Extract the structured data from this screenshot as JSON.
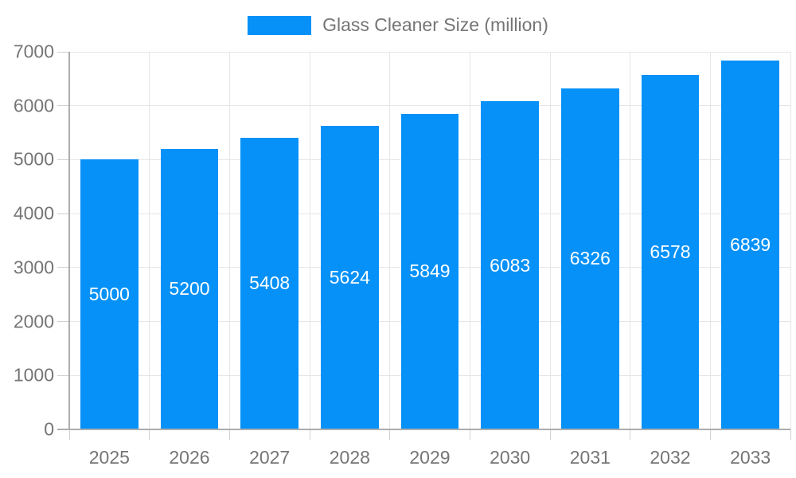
{
  "chart_data": {
    "type": "bar",
    "title": "Glass Cleaner Size (million)",
    "legend": [
      "Glass Cleaner Size (million)"
    ],
    "legend_position": "top",
    "categories": [
      "2025",
      "2026",
      "2027",
      "2028",
      "2029",
      "2030",
      "2031",
      "2032",
      "2033"
    ],
    "values": [
      5000,
      5200,
      5408,
      5624,
      5849,
      6083,
      6326,
      6578,
      6839
    ],
    "bar_value_labels": [
      "5000",
      "5200",
      "5408",
      "5624",
      "5849",
      "6083",
      "6326",
      "6578",
      "6839"
    ],
    "xlabel": "",
    "ylabel": "",
    "ylim": [
      0,
      7000
    ],
    "yticks": [
      0,
      1000,
      2000,
      3000,
      4000,
      5000,
      6000,
      7000
    ],
    "grid": true
  },
  "colors": {
    "bar": "#0591f8",
    "grid": "#e6e6e6",
    "axis": "#adadad",
    "tick": "#d0d0d0",
    "text": "#757575",
    "bar_label": "#ffffff",
    "background": "#ffffff"
  }
}
